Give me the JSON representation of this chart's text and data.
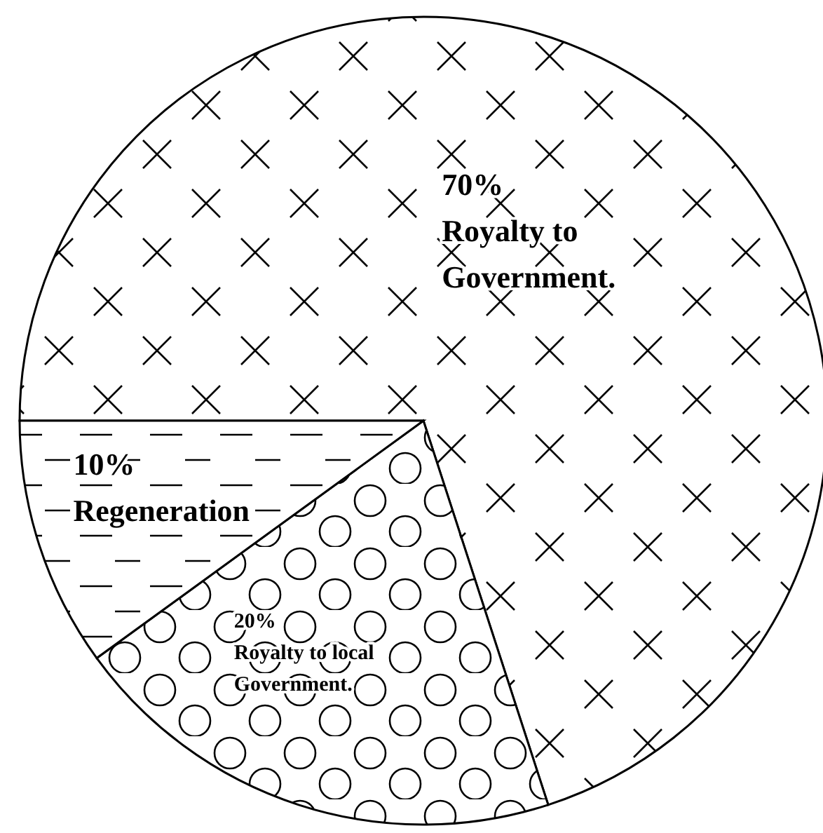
{
  "chart_data": {
    "type": "pie",
    "categories": [
      "Royalty to Government.",
      "Royalty to local Government.",
      "Regeneration"
    ],
    "values": [
      70,
      20,
      10
    ],
    "colors": [
      "#ffffff",
      "#ffffff",
      "#ffffff"
    ],
    "value_labels": [
      "70%",
      "20%",
      "10%"
    ]
  }
}
